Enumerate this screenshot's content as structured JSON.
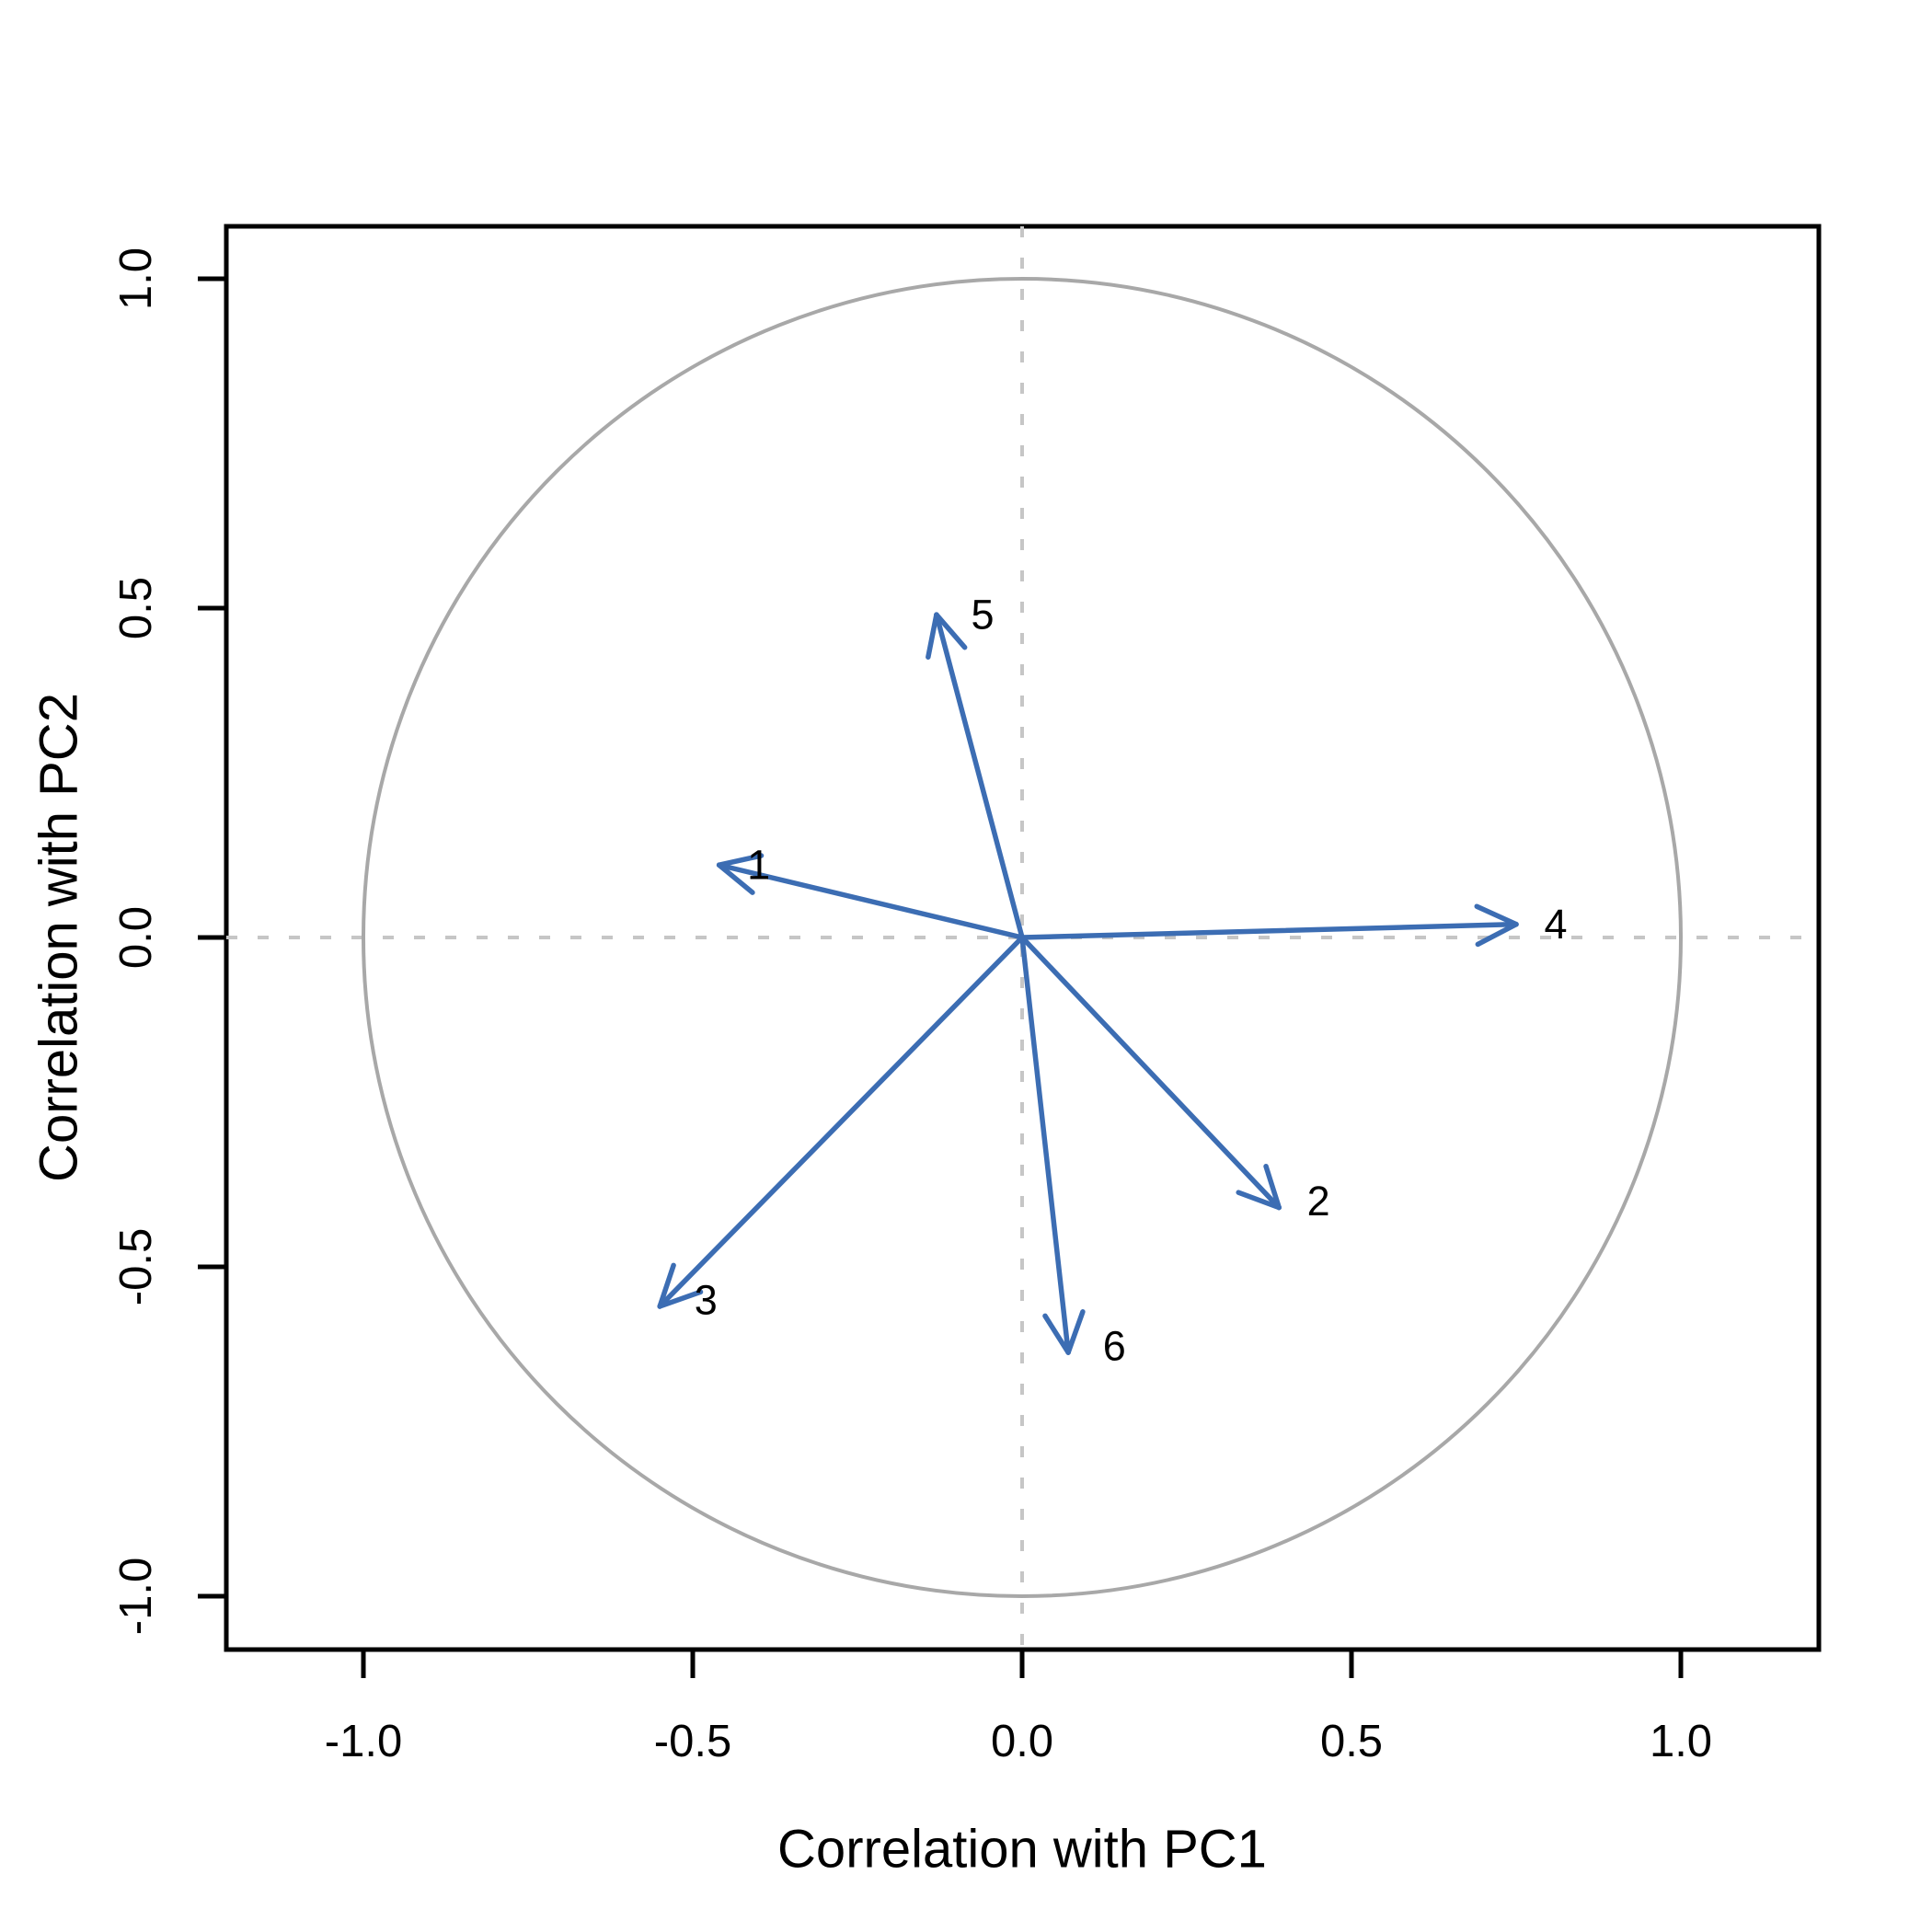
{
  "figure": {
    "background": "#ffffff",
    "title": ""
  },
  "chart_data": {
    "type": "scatter",
    "subtype": "pca_correlation_circle_with_arrows",
    "title": "",
    "xlabel": "Correlation with PC1",
    "ylabel": "Correlation with PC2",
    "xlim": [
      -1.21,
      1.21
    ],
    "ylim": [
      -1.08,
      1.08
    ],
    "x_ticks": [
      -1.0,
      -0.5,
      0.0,
      0.5,
      1.0
    ],
    "x_tick_labels": [
      "-1.0",
      "-0.5",
      "0.0",
      "0.5",
      "1.0"
    ],
    "y_ticks": [
      -1.0,
      -0.5,
      0.0,
      0.5,
      1.0
    ],
    "y_tick_labels": [
      "-1.0",
      "-0.5",
      "0.0",
      "0.5",
      "1.0"
    ],
    "grid": false,
    "legend": null,
    "unit_circle": {
      "center": [
        0,
        0
      ],
      "radius": 1.0,
      "color": "#a8a8a8"
    },
    "crosshair": {
      "h_line_y": 0.0,
      "v_line_x": 0.0,
      "style": "dashed",
      "color": "#c6c6c6"
    },
    "arrow_color": "#3c6db3",
    "arrows_origin": [
      0,
      0
    ],
    "arrows": [
      {
        "label": "1",
        "x": -0.46,
        "y": 0.11,
        "label_x": -0.4,
        "label_y": 0.11
      },
      {
        "label": "2",
        "x": 0.39,
        "y": -0.41,
        "label_x": 0.45,
        "label_y": -0.4
      },
      {
        "label": "3",
        "x": -0.55,
        "y": -0.56,
        "label_x": -0.48,
        "label_y": -0.55
      },
      {
        "label": "4",
        "x": 0.75,
        "y": 0.02,
        "label_x": 0.81,
        "label_y": 0.02
      },
      {
        "label": "5",
        "x": -0.13,
        "y": 0.49,
        "label_x": -0.06,
        "label_y": 0.49
      },
      {
        "label": "6",
        "x": 0.07,
        "y": -0.63,
        "label_x": 0.14,
        "label_y": -0.62
      }
    ]
  }
}
